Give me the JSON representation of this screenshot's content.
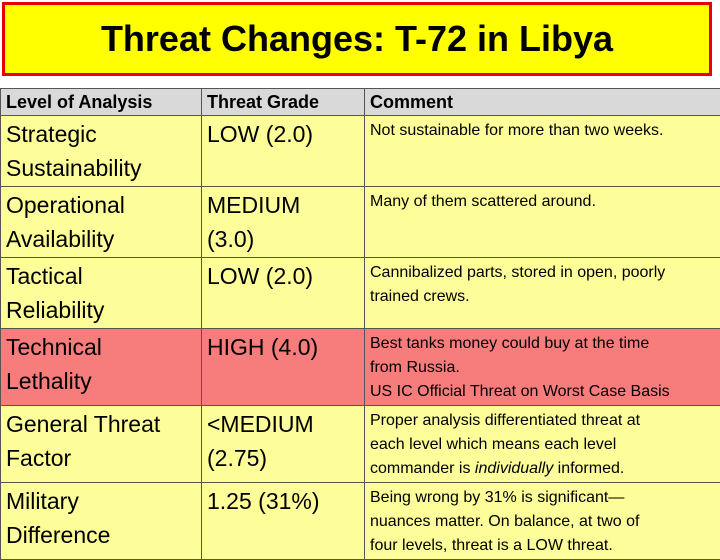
{
  "title": "Threat Changes: T-72 in Libya",
  "headers": [
    "Level of Analysis",
    "Threat Grade",
    "Comment"
  ],
  "colors": {
    "title_bg": "#ffff00",
    "title_border": "#e60000",
    "header_bg": "#d9d9d9",
    "row_yellow": "#fdfd99",
    "row_red": "#f77c7c"
  },
  "rows": [
    {
      "level": [
        "Strategic",
        "Sustainability"
      ],
      "grade": [
        "LOW (2.0)"
      ],
      "comment": [
        "Not sustainable for more than two weeks."
      ]
    },
    {
      "level": [
        "Operational",
        "Availability"
      ],
      "grade": [
        "MEDIUM",
        "(3.0)"
      ],
      "comment": [
        "Many of them scattered around."
      ]
    },
    {
      "level": [
        "Tactical",
        "Reliability"
      ],
      "grade": [
        "LOW (2.0)"
      ],
      "comment": [
        "Cannibalized parts, stored in open, poorly",
        "trained crews."
      ]
    },
    {
      "level": [
        "Technical",
        "Lethality"
      ],
      "grade": [
        "HIGH (4.0)"
      ],
      "comment": [
        "Best tanks money could buy at the time",
        "from Russia.",
        "US IC Official Threat on Worst Case Basis"
      ]
    },
    {
      "level": [
        "General Threat",
        "Factor"
      ],
      "grade": [
        "<MEDIUM",
        "(2.75)"
      ],
      "comment": [
        "Proper analysis differentiated threat at",
        "each level which means each level"
      ],
      "comment_last": {
        "before": "commander is ",
        "italic": "individually",
        "after": " informed."
      }
    },
    {
      "level": [
        "Military",
        "Difference"
      ],
      "grade": [
        "1.25 (31%)"
      ],
      "comment": [
        "Being wrong by 31% is significant—",
        "nuances matter.  On balance, at two of",
        "four levels, threat is a LOW threat."
      ]
    }
  ]
}
